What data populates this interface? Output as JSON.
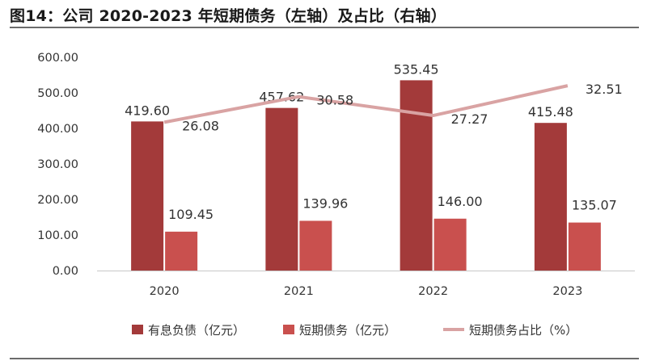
{
  "title": "图14：公司 2020-2023 年短期债务（左轴）及占比（右轴）",
  "colors": {
    "interest_debt": "#a33a3a",
    "short_debt": "#c9504e",
    "ratio_line": "#d9a3a3",
    "axis": "#c8c8c8"
  },
  "chart_data": {
    "type": "bar",
    "categories": [
      "2020",
      "2021",
      "2022",
      "2023"
    ],
    "y_left_range": [
      0,
      600
    ],
    "y_left_ticks": [
      "0.00",
      "100.00",
      "200.00",
      "300.00",
      "400.00",
      "500.00",
      "600.00"
    ],
    "y_right_range": [
      0,
      37.5
    ],
    "grid": false,
    "legend_position": "bottom",
    "series": [
      {
        "name": "有息负债（亿元）",
        "type": "bar",
        "axis": "left",
        "values": [
          419.6,
          457.62,
          535.45,
          415.48
        ],
        "labels": [
          "419.60",
          "457.62",
          "535.45",
          "415.48"
        ]
      },
      {
        "name": "短期债务（亿元）",
        "type": "bar",
        "axis": "left",
        "values": [
          109.45,
          139.96,
          146.0,
          135.07
        ],
        "labels": [
          "109.45",
          "139.96",
          "146.00",
          "135.07"
        ]
      },
      {
        "name": "短期债务占比（%）",
        "type": "line",
        "axis": "right",
        "values": [
          26.08,
          30.58,
          27.27,
          32.51
        ],
        "labels": [
          "26.08",
          "30.58",
          "27.27",
          "32.51"
        ]
      }
    ]
  }
}
